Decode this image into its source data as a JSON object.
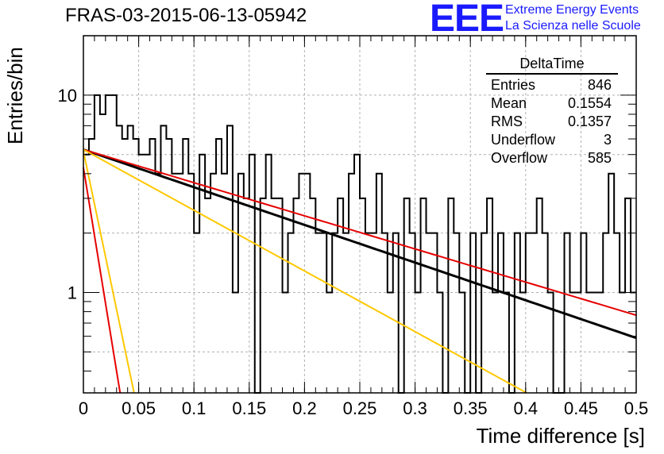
{
  "header": {
    "title": "FRAS-03-2015-06-13-05942",
    "logo_text": "EEE",
    "logo_line1": "Extreme Energy Events",
    "logo_line2": "La Scienza nelle Scuole"
  },
  "stats": {
    "title": "DeltaTime",
    "rows": [
      {
        "label": "Entries",
        "value": "846"
      },
      {
        "label": "Mean",
        "value": "0.1554"
      },
      {
        "label": "RMS",
        "value": "0.1357"
      },
      {
        "label": "Underflow",
        "value": "3"
      },
      {
        "label": "Overflow",
        "value": "585"
      }
    ]
  },
  "chart_data": {
    "type": "histogram",
    "xlabel": "Time difference [s]",
    "ylabel": "Entries/bin",
    "xlim": [
      0,
      0.5
    ],
    "ylim": [
      0.31,
      20
    ],
    "yscale": "log",
    "grid": true,
    "x_ticks": [
      "0",
      "0.05",
      "0.1",
      "0.15",
      "0.2",
      "0.25",
      "0.3",
      "0.35",
      "0.4",
      "0.45",
      "0.5"
    ],
    "y_ticks": [
      "1",
      "10"
    ],
    "bin_width": 0.005,
    "bin_counts": [
      5,
      6,
      10,
      8,
      10,
      10,
      7,
      6,
      7,
      6,
      5,
      5,
      6,
      4,
      7,
      6,
      4,
      4,
      6,
      4,
      2,
      5,
      3,
      4,
      6,
      4,
      7,
      1,
      4,
      3,
      5,
      0,
      3,
      5,
      3,
      3,
      1,
      2,
      3,
      4,
      4,
      3,
      2,
      2,
      1,
      2,
      3,
      2,
      4,
      5,
      3,
      2,
      2,
      4,
      2,
      1,
      2,
      0,
      3,
      2,
      1,
      3,
      2,
      2,
      1,
      0,
      3,
      2,
      1,
      0,
      2,
      0,
      2,
      3,
      1,
      2,
      1,
      0,
      2,
      1,
      2,
      2,
      3,
      2,
      1,
      0,
      0,
      2,
      1,
      1,
      2,
      1,
      1,
      1,
      2,
      4,
      2,
      1,
      3,
      1
    ],
    "fits": [
      {
        "name": "fit-black",
        "color": "#000000",
        "A": 5.3,
        "tau": 0.2275,
        "x0": 0.0,
        "x1": 0.5
      },
      {
        "name": "fit-red",
        "color": "#e60000",
        "A": 5.3,
        "tau": 0.2587,
        "x0": 0.0,
        "x1": 0.5
      },
      {
        "name": "fit-orange",
        "color": "#ffc800",
        "A": 5.3,
        "tau": 0.1412,
        "x0": 0.0,
        "x1": 0.5
      },
      {
        "name": "fit-red-steep",
        "color": "#e60000",
        "A": 4.3,
        "tau": 0.01263,
        "x0": 0.0,
        "x1": 0.05
      },
      {
        "name": "fit-orange-steep",
        "color": "#ffc800",
        "A": 5.2,
        "tau": 0.01625,
        "x0": 0.0,
        "x1": 0.05
      }
    ],
    "colors": {
      "histogram": "#000000",
      "grid": "#b0b0b0"
    }
  }
}
